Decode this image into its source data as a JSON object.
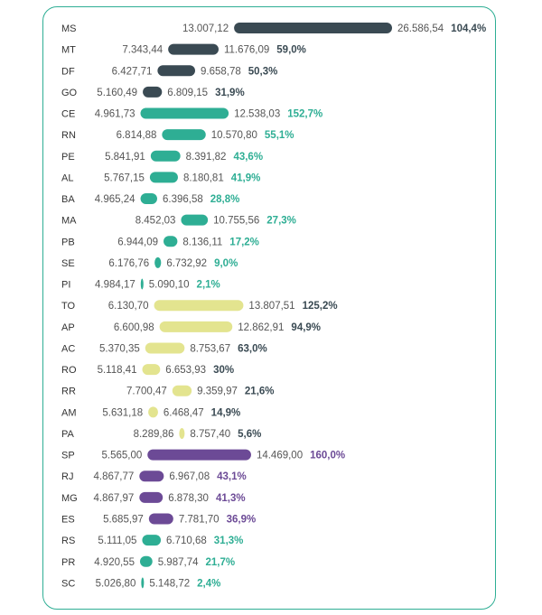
{
  "chart_data": {
    "type": "bar",
    "subtype": "floating-range",
    "rows": [
      {
        "state": "MS",
        "start": "13.007,12",
        "end": "26.586,54",
        "pct": "104,4%",
        "start_value": 13007.12,
        "end_value": 26586.54,
        "group": "dark"
      },
      {
        "state": "MT",
        "start": "7.343,44",
        "end": "11.676,09",
        "pct": "59,0%",
        "start_value": 7343.44,
        "end_value": 11676.09,
        "group": "dark"
      },
      {
        "state": "DF",
        "start": "6.427,71",
        "end": "9.658,78",
        "pct": "50,3%",
        "start_value": 6427.71,
        "end_value": 9658.78,
        "group": "dark"
      },
      {
        "state": "GO",
        "start": "5.160,49",
        "end": "6.809,15",
        "pct": "31,9%",
        "start_value": 5160.49,
        "end_value": 6809.15,
        "group": "dark"
      },
      {
        "state": "CE",
        "start": "4.961,73",
        "end": "12.538,03",
        "pct": "152,7%",
        "start_value": 4961.73,
        "end_value": 12538.03,
        "group": "teal"
      },
      {
        "state": "RN",
        "start": "6.814,88",
        "end": "10.570,80",
        "pct": "55,1%",
        "start_value": 6814.88,
        "end_value": 10570.8,
        "group": "teal"
      },
      {
        "state": "PE",
        "start": "5.841,91",
        "end": "8.391,82",
        "pct": "43,6%",
        "start_value": 5841.91,
        "end_value": 8391.82,
        "group": "teal"
      },
      {
        "state": "AL",
        "start": "5.767,15",
        "end": "8.180,81",
        "pct": "41,9%",
        "start_value": 5767.15,
        "end_value": 8180.81,
        "group": "teal"
      },
      {
        "state": "BA",
        "start": "4.965,24",
        "end": "6.396,58",
        "pct": "28,8%",
        "start_value": 4965.24,
        "end_value": 6396.58,
        "group": "teal"
      },
      {
        "state": "MA",
        "start": "8.452,03",
        "end": "10.755,56",
        "pct": "27,3%",
        "start_value": 8452.03,
        "end_value": 10755.56,
        "group": "teal"
      },
      {
        "state": "PB",
        "start": "6.944,09",
        "end": "8.136,11",
        "pct": "17,2%",
        "start_value": 6944.09,
        "end_value": 8136.11,
        "group": "teal"
      },
      {
        "state": "SE",
        "start": "6.176,76",
        "end": "6.732,92",
        "pct": "9,0%",
        "start_value": 6176.76,
        "end_value": 6732.92,
        "group": "teal"
      },
      {
        "state": "PI",
        "start": "4.984,17",
        "end": "5.090,10",
        "pct": "2,1%",
        "start_value": 4984.17,
        "end_value": 5090.1,
        "group": "teal"
      },
      {
        "state": "TO",
        "start": "6.130,70",
        "end": "13.807,51",
        "pct": "125,2%",
        "start_value": 6130.7,
        "end_value": 13807.51,
        "group": "yellow"
      },
      {
        "state": "AP",
        "start": "6.600,98",
        "end": "12.862,91",
        "pct": "94,9%",
        "start_value": 6600.98,
        "end_value": 12862.91,
        "group": "yellow"
      },
      {
        "state": "AC",
        "start": "5.370,35",
        "end": "8.753,67",
        "pct": "63,0%",
        "start_value": 5370.35,
        "end_value": 8753.67,
        "group": "yellow"
      },
      {
        "state": "RO",
        "start": "5.118,41",
        "end": "6.653,93",
        "pct": "30%",
        "start_value": 5118.41,
        "end_value": 6653.93,
        "group": "yellow"
      },
      {
        "state": "RR",
        "start": "7.700,47",
        "end": "9.359,97",
        "pct": "21,6%",
        "start_value": 7700.47,
        "end_value": 9359.97,
        "group": "yellow"
      },
      {
        "state": "AM",
        "start": "5.631,18",
        "end": "6.468,47",
        "pct": "14,9%",
        "start_value": 5631.18,
        "end_value": 6468.47,
        "group": "yellow"
      },
      {
        "state": "PA",
        "start": "8.289,86",
        "end": "8.757,40",
        "pct": "5,6%",
        "start_value": 8289.86,
        "end_value": 8757.4,
        "group": "yellow"
      },
      {
        "state": "SP",
        "start": "5.565,00",
        "end": "14.469,00",
        "pct": "160,0%",
        "start_value": 5565.0,
        "end_value": 14469.0,
        "group": "purple"
      },
      {
        "state": "RJ",
        "start": "4.867,77",
        "end": "6.967,08",
        "pct": "43,1%",
        "start_value": 4867.77,
        "end_value": 6967.08,
        "group": "purple"
      },
      {
        "state": "MG",
        "start": "4.867,97",
        "end": "6.878,30",
        "pct": "41,3%",
        "start_value": 4867.97,
        "end_value": 6878.3,
        "group": "purple"
      },
      {
        "state": "ES",
        "start": "5.685,97",
        "end": "7.781,70",
        "pct": "36,9%",
        "start_value": 5685.97,
        "end_value": 7781.7,
        "group": "purple"
      },
      {
        "state": "RS",
        "start": "5.111,05",
        "end": "6.710,68",
        "pct": "31,3%",
        "start_value": 5111.05,
        "end_value": 6710.68,
        "group": "teal"
      },
      {
        "state": "PR",
        "start": "4.920,55",
        "end": "5.987,74",
        "pct": "21,7%",
        "start_value": 4920.55,
        "end_value": 5987.74,
        "group": "teal"
      },
      {
        "state": "SC",
        "start": "5.026,80",
        "end": "5.148,72",
        "pct": "2,4%",
        "start_value": 5026.8,
        "end_value": 5148.72,
        "group": "teal"
      }
    ]
  },
  "colors": {
    "dark": "#3a4a53",
    "teal": "#2eae94",
    "yellow": "#e3e48f",
    "purple": "#6c4a96",
    "frame": "#2eae94",
    "label": "#333333",
    "value": "#555555"
  }
}
